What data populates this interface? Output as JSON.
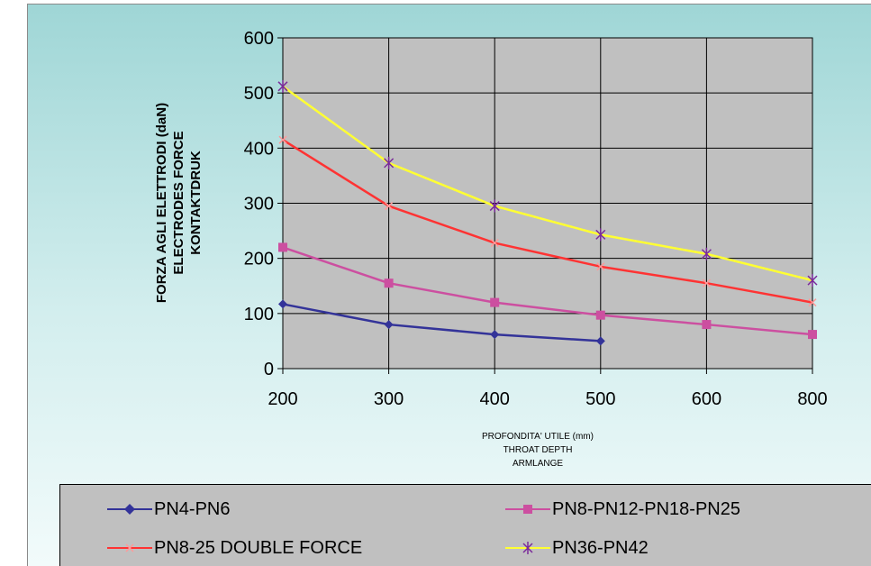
{
  "chart_data": {
    "type": "line",
    "title": "",
    "ylabel_lines": [
      "FORZA AGLI ELETTRODI (daN)",
      "ELECTRODES FORCE",
      "KONTAKTDRUK"
    ],
    "xlabel_lines": [
      "PROFONDITA' UTILE (mm)",
      "THROAT DEPTH",
      "ARMLANGE"
    ],
    "categories": [
      "200",
      "300",
      "400",
      "500",
      "600",
      "800"
    ],
    "yticks": [
      "0",
      "100",
      "200",
      "300",
      "400",
      "500",
      "600"
    ],
    "ylim": [
      0,
      600
    ],
    "grid": true,
    "plot_background": "#c0c0c0",
    "legend_position": "bottom",
    "series": [
      {
        "name": "PN4-PN6",
        "values": [
          117,
          80,
          62,
          50,
          null,
          null
        ],
        "color": "#333399",
        "marker": "diamond"
      },
      {
        "name": "PN8-PN12-PN18-PN25",
        "values": [
          220,
          155,
          120,
          97,
          80,
          62
        ],
        "color": "#cc4fa0",
        "marker": "square"
      },
      {
        "name": "PN8-25 DOUBLE FORCE",
        "values": [
          415,
          295,
          228,
          185,
          155,
          120
        ],
        "color": "#ff3333",
        "marker": "x"
      },
      {
        "name": "PN36-PN42",
        "values": [
          512,
          373,
          295,
          243,
          208,
          160
        ],
        "color": "#ffff33",
        "marker": "star"
      }
    ]
  }
}
